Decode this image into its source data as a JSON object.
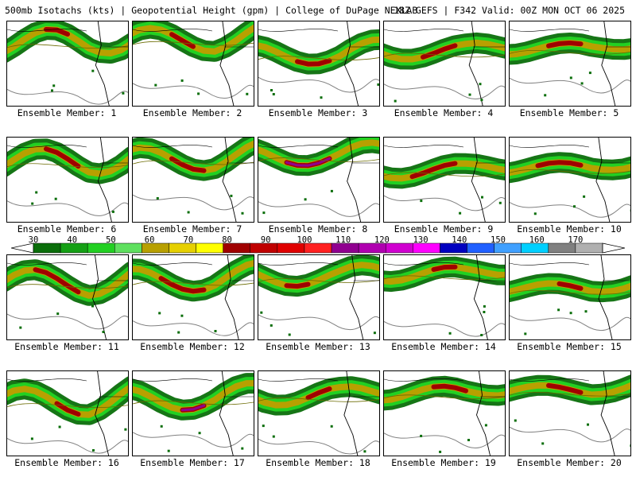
{
  "header": {
    "left": "500mb Isotachs (kts) | Geopotential Height (gpm) | College of DuPage NEXLAB",
    "right": "18Z GEFS | F342 Valid: 00Z MON OCT 06 2025"
  },
  "panel_label_prefix": "Ensemble Member:",
  "members": [
    "1",
    "2",
    "3",
    "4",
    "5",
    "6",
    "7",
    "8",
    "9",
    "10",
    "11",
    "12",
    "13",
    "14",
    "15",
    "16",
    "17",
    "18",
    "19",
    "20"
  ],
  "colorbar": {
    "labels": [
      "30",
      "40",
      "50",
      "60",
      "70",
      "80",
      "90",
      "100",
      "110",
      "120",
      "130",
      "140",
      "150",
      "160",
      "170"
    ],
    "colors": [
      "#0a6e0a",
      "#15a015",
      "#22d022",
      "#5fe05f",
      "#b8a000",
      "#e6d000",
      "#ffff00",
      "#a00000",
      "#c00000",
      "#e00000",
      "#ff2020",
      "#900090",
      "#b000b0",
      "#d000d0",
      "#ff00ff",
      "#0000c0",
      "#2060ff",
      "#40a0ff",
      "#00d0ff",
      "#808080",
      "#b0b0b0"
    ]
  },
  "jet": {
    "speed_colors": {
      "30": "#0a6e0a",
      "50": "#22d022",
      "60": "#b8a000",
      "80": "#a00000",
      "100": "#900090"
    },
    "height_contour_color": "#808080",
    "map_line_color": "#000000"
  }
}
